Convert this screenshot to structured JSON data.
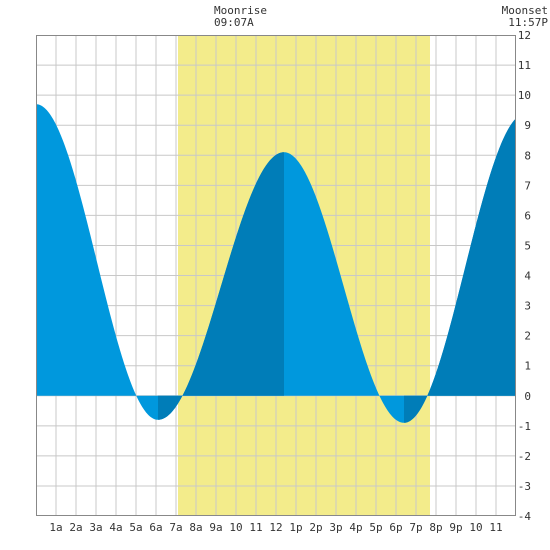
{
  "header": {
    "moonrise_label": "Moonrise",
    "moonrise_time": "09:07A",
    "moonset_label": "Moonset",
    "moonset_time": "11:57P"
  },
  "colors": {
    "daylight": "#f3ec8b",
    "tide_light": "#0098dd",
    "tide_dark": "#007db8",
    "grid": "#c8c8c8",
    "frame": "#888888",
    "background": "#ffffff"
  },
  "chart_data": {
    "type": "area",
    "title": "",
    "xlabel": "",
    "ylabel": "",
    "xlim": [
      0,
      24
    ],
    "ylim": [
      -4,
      12
    ],
    "grid": true,
    "x_ticks": [
      "1a",
      "2a",
      "3a",
      "4a",
      "5a",
      "6a",
      "7a",
      "8a",
      "9a",
      "10",
      "11",
      "12",
      "1p",
      "2p",
      "3p",
      "4p",
      "5p",
      "6p",
      "7p",
      "8p",
      "9p",
      "10",
      "11"
    ],
    "y_ticks": [
      "12",
      "11",
      "10",
      "9",
      "8",
      "7",
      "6",
      "5",
      "4",
      "3",
      "2",
      "1",
      "0",
      "-1",
      "-2",
      "-3",
      "-4"
    ],
    "daylight_band": {
      "start_hour": 7.1,
      "end_hour": 19.7
    },
    "tide_extrema": [
      {
        "hour": 0.0,
        "height": 9.7,
        "kind": "high"
      },
      {
        "hour": 6.1,
        "height": -0.8,
        "kind": "low"
      },
      {
        "hour": 12.4,
        "height": 8.1,
        "kind": "high"
      },
      {
        "hour": 18.4,
        "height": -0.9,
        "kind": "low"
      },
      {
        "hour": 24.5,
        "height": 9.4,
        "kind": "high"
      }
    ],
    "rising_segments": [
      [
        6.1,
        12.4
      ],
      [
        18.4,
        24.0
      ]
    ]
  }
}
